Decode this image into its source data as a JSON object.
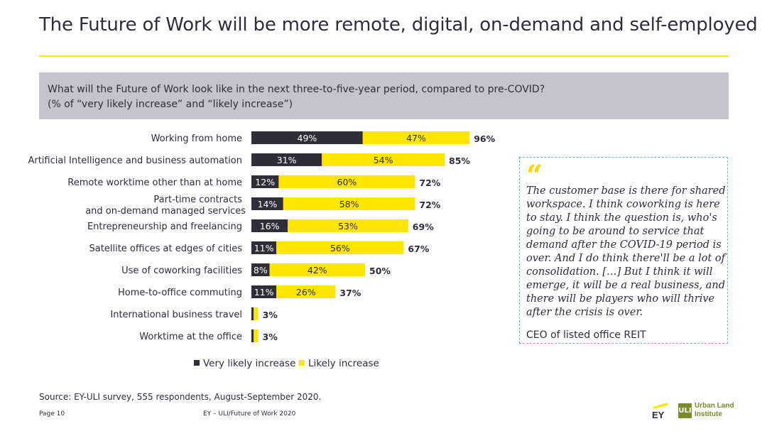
{
  "title": "The Future of Work will be more remote, digital, on-demand and self-employed",
  "question": {
    "line1": "What will the Future of Work look like in the next three-to-five-year period, compared to pre-COVID?",
    "line2": "(% of “very likely increase” and “likely increase”)"
  },
  "colors": {
    "dark": "#2e2e38",
    "yellow": "#ffe600",
    "grey": "#c4c4cd",
    "accent_border": "#6abfb6"
  },
  "chart_data": {
    "type": "bar",
    "orientation": "horizontal",
    "stacked": true,
    "categories": [
      [
        "Working from home"
      ],
      [
        "Artificial Intelligence and business automation"
      ],
      [
        "Remote worktime other than at home"
      ],
      [
        "Part-time contracts",
        "and on-demand managed services"
      ],
      [
        "Entrepreneurship and freelancing"
      ],
      [
        "Satellite offices at edges of cities"
      ],
      [
        "Use of coworking facilities"
      ],
      [
        "Home-to-office commuting"
      ],
      [
        "International business travel"
      ],
      [
        "Worktime at the office"
      ]
    ],
    "series": [
      {
        "name": "Very likely increase",
        "color": "#2e2e38",
        "values": [
          49,
          31,
          12,
          14,
          16,
          11,
          8,
          11,
          1,
          1
        ],
        "labels": [
          "49%",
          "31%",
          "12%",
          "14%",
          "16%",
          "11%",
          "8%",
          "11%",
          "",
          ""
        ]
      },
      {
        "name": "Likely increase",
        "color": "#ffe600",
        "values": [
          47,
          54,
          60,
          58,
          53,
          56,
          42,
          26,
          2,
          2
        ],
        "labels": [
          "47%",
          "54%",
          "60%",
          "58%",
          "53%",
          "56%",
          "42%",
          "26%",
          "",
          ""
        ]
      }
    ],
    "totals": [
      "96%",
      "85%",
      "72%",
      "72%",
      "69%",
      "67%",
      "50%",
      "37%",
      "3%",
      "3%"
    ],
    "xlim": [
      0,
      100
    ],
    "legend_position": "bottom"
  },
  "legend": {
    "item1": "Very likely increase",
    "item2": "Likely increase"
  },
  "quote": {
    "mark": "“",
    "text": "The customer base is there for shared workspace. I think coworking is here to stay. I think the question is, who's going to be around to service that demand after the COVID-19 period is over. And I do think there'll be a lot of consolidation. […] But I think it will emerge, it will be a real business, and there will be players who will thrive after the crisis is over.",
    "author": "CEO of listed office REIT"
  },
  "source": "Source: EY-ULI survey, 555 respondents, August-September 2020.",
  "footer": {
    "page": "Page 10",
    "doc": "EY – ULI/Future of Work 2020"
  },
  "logos": {
    "ey": "EY",
    "uli_mark": "ULI",
    "uli_line1": "Urban Land",
    "uli_line2": "Institute"
  }
}
